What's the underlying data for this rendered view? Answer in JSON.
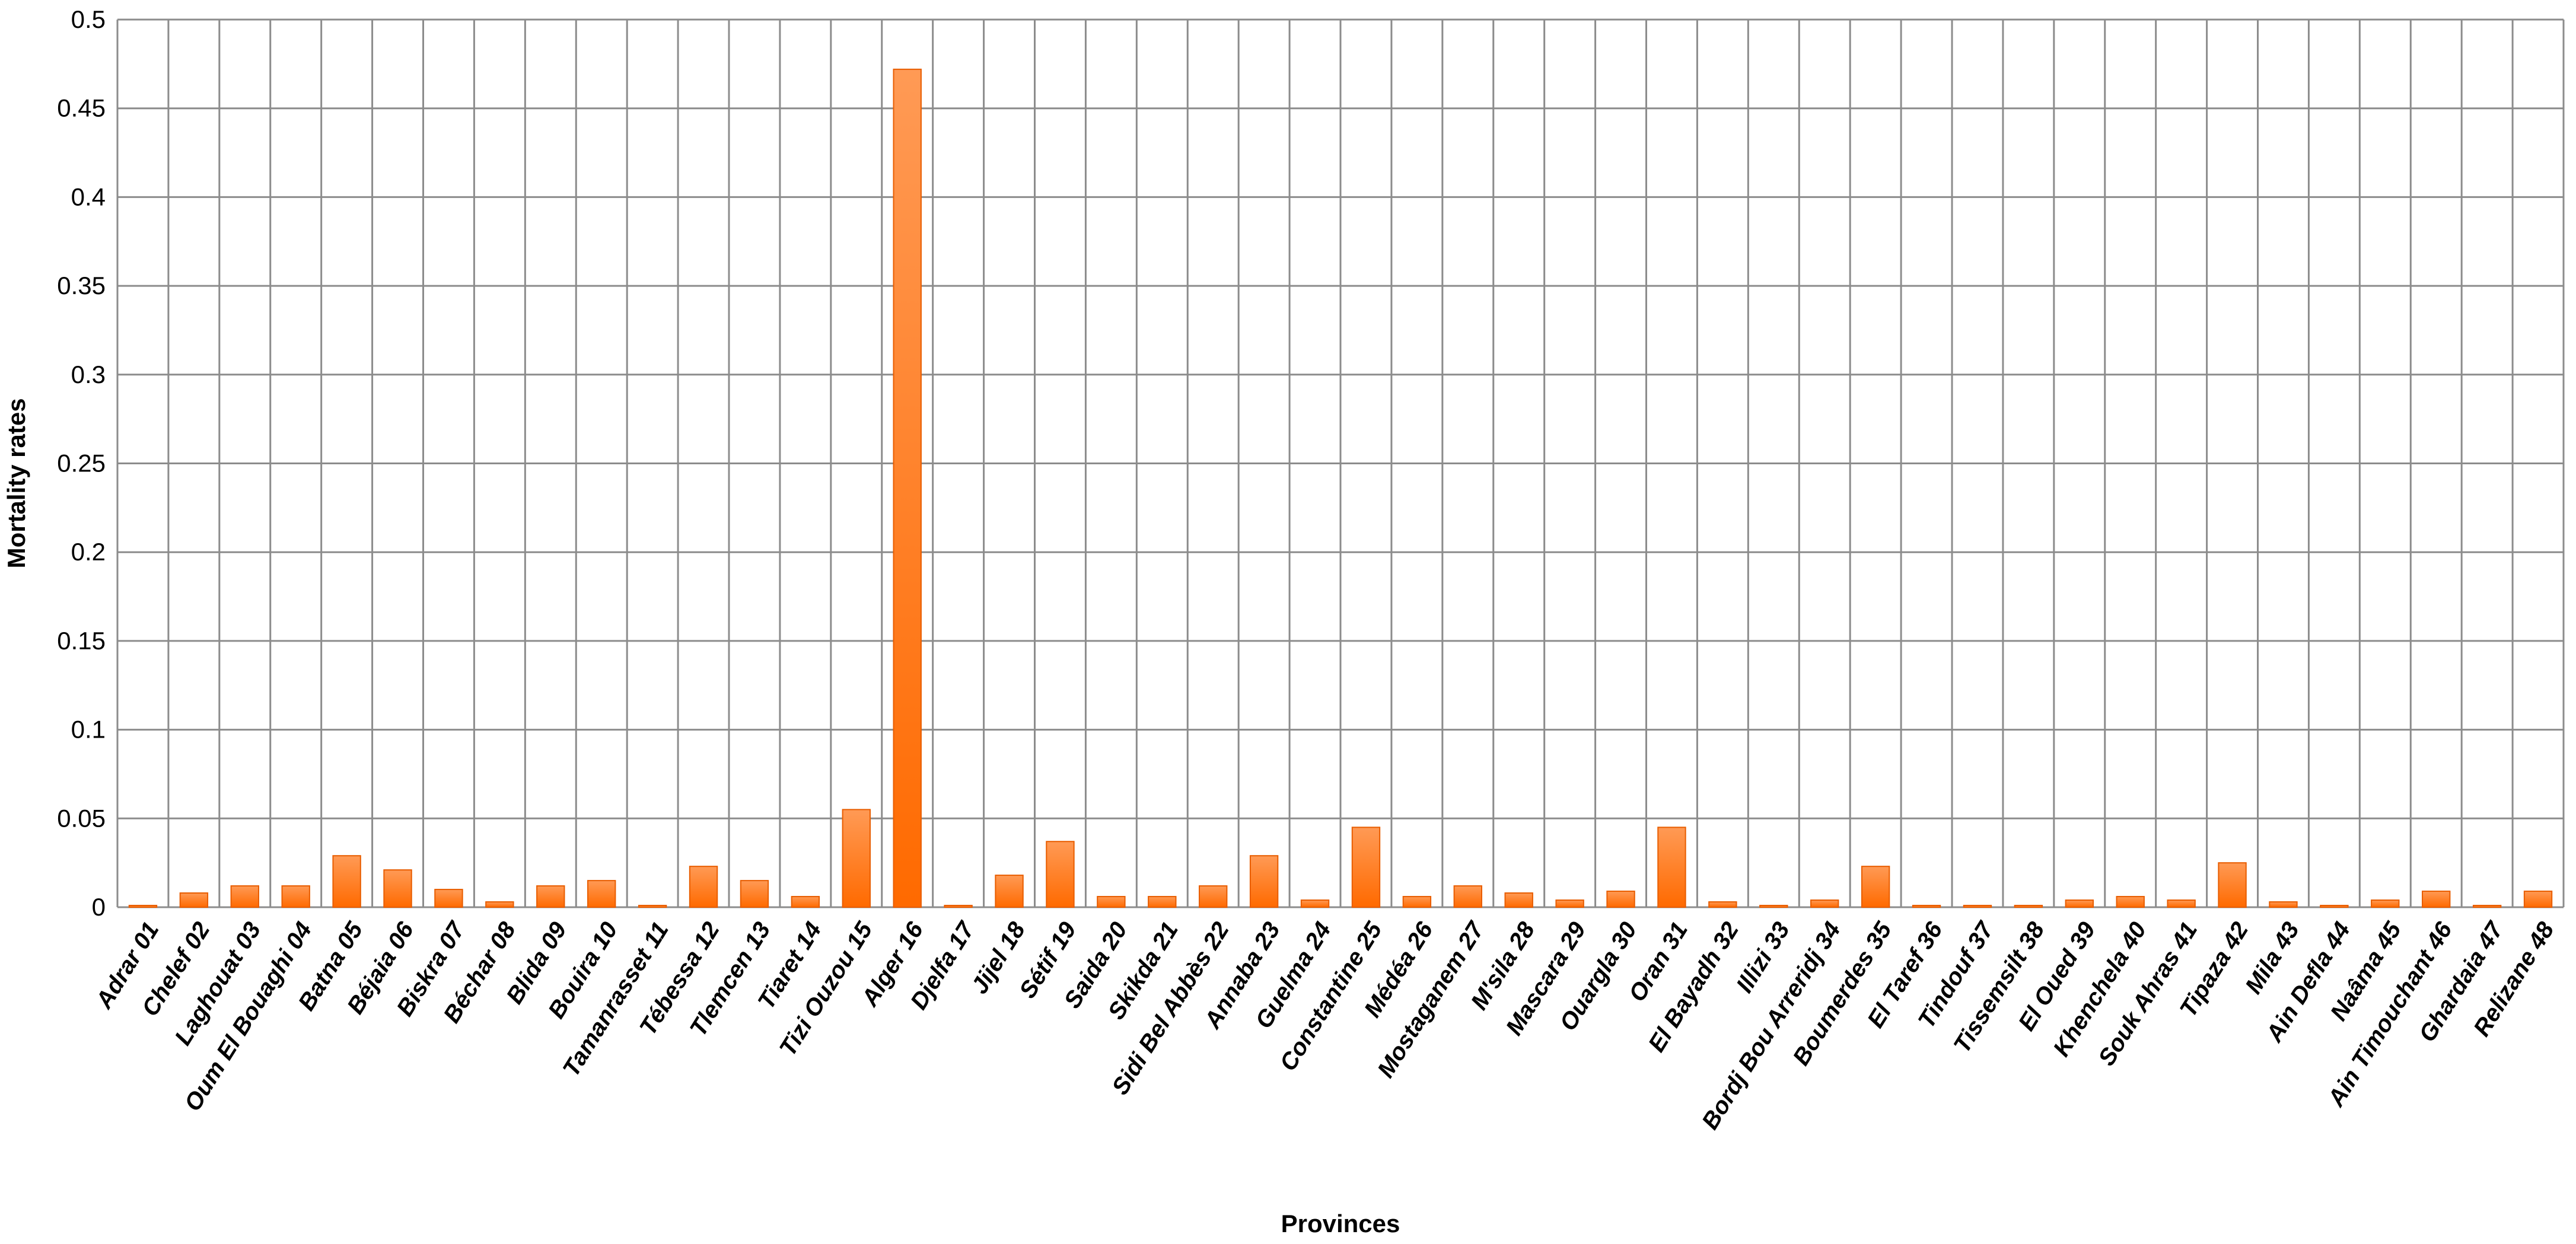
{
  "chart_data": {
    "type": "bar",
    "title": "",
    "xlabel": "Provinces",
    "ylabel": "Mortality rates",
    "ylim": [
      0,
      0.5
    ],
    "yticks": [
      "0",
      "0.05",
      "0.1",
      "0.15",
      "0.2",
      "0.25",
      "0.3",
      "0.35",
      "0.4",
      "0.45",
      "0.5"
    ],
    "grid": true,
    "legend": "none",
    "bar_color": "#ff7a1a",
    "categories": [
      "Adrar 01",
      "Chelef 02",
      "Laghouat 03",
      "Oum El Bouaghi 04",
      "Batna 05",
      "Béjaia 06",
      "Biskra 07",
      "Béchar 08",
      "Blida 09",
      "Bouira 10",
      "Tamanrasset 11",
      "Tébessa 12",
      "Tlemcen 13",
      "Tiaret 14",
      "Tizi Ouzou 15",
      "Alger 16",
      "Djelfa 17",
      "Jijel 18",
      "Sétif 19",
      "Saida 20",
      "Skikda 21",
      "Sidi Bel Abbès 22",
      "Annaba 23",
      "Guelma 24",
      "Constantine 25",
      "Médéa 26",
      "Mostaganem 27",
      "M'sila 28",
      "Mascara 29",
      "Ouargla 30",
      "Oran 31",
      "El Bayadh 32",
      "Illizi 33",
      "Bordj Bou Arreridj 34",
      "Boumerdes 35",
      "El Taref 36",
      "Tindouf 37",
      "Tissemsilt 38",
      "El Oued 39",
      "Khenchela 40",
      "Souk Ahras 41",
      "Tipaza 42",
      "Mila 43",
      "Ain Defla 44",
      "Naâma 45",
      "Ain Timouchant 46",
      "Ghardaia 47",
      "Relizane 48"
    ],
    "values": [
      0.001,
      0.008,
      0.012,
      0.012,
      0.029,
      0.021,
      0.01,
      0.003,
      0.012,
      0.015,
      0.001,
      0.023,
      0.015,
      0.006,
      0.055,
      0.472,
      0.001,
      0.018,
      0.037,
      0.006,
      0.006,
      0.012,
      0.029,
      0.004,
      0.045,
      0.006,
      0.012,
      0.008,
      0.004,
      0.009,
      0.045,
      0.003,
      0.001,
      0.004,
      0.023,
      0.001,
      0.001,
      0.001,
      0.004,
      0.006,
      0.004,
      0.025,
      0.003,
      0.001,
      0.004,
      0.009,
      0.001,
      0.009
    ]
  }
}
